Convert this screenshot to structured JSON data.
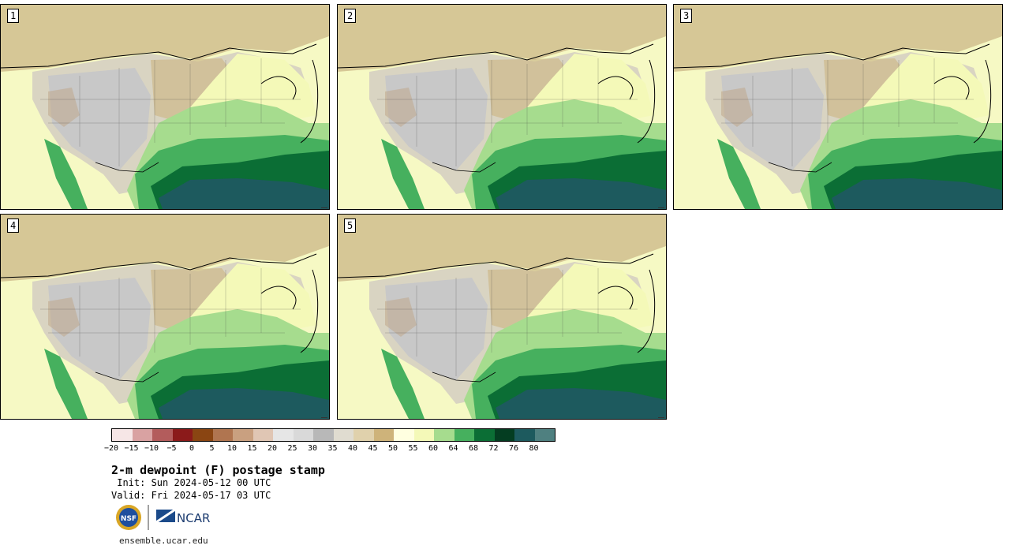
{
  "panels": [
    {
      "label": "1"
    },
    {
      "label": "2"
    },
    {
      "label": "3"
    },
    {
      "label": "4"
    },
    {
      "label": "5"
    }
  ],
  "legend": {
    "colors": [
      "#f6e6e6",
      "#d9a2a2",
      "#b35c5c",
      "#8b1a1a",
      "#8a4512",
      "#b07550",
      "#c9a080",
      "#e0c6b4",
      "#e6e6e6",
      "#d9d9d9",
      "#b8b8b8",
      "#e0dcd0",
      "#e0d1ac",
      "#ceb37a",
      "#ffffe0",
      "#f4f9b8",
      "#a6dc8e",
      "#46b05e",
      "#0b6e35",
      "#043d21",
      "#1d5a5e",
      "#4f8080"
    ],
    "ticks": [
      "−20",
      "−15",
      "−10",
      "−5",
      "0",
      "5",
      "10",
      "15",
      "20",
      "25",
      "30",
      "35",
      "40",
      "45",
      "50",
      "55",
      "60",
      "64",
      "68",
      "72",
      "76",
      "80"
    ]
  },
  "title": "2-m dewpoint (F) postage stamp",
  "init": " Init: Sun 2024-05-12 00 UTC",
  "valid": "Valid: Fri 2024-05-17 03 UTC",
  "logos": {
    "nsf": "NSF",
    "ncar": "NCAR"
  },
  "url": "ensemble.ucar.edu"
}
